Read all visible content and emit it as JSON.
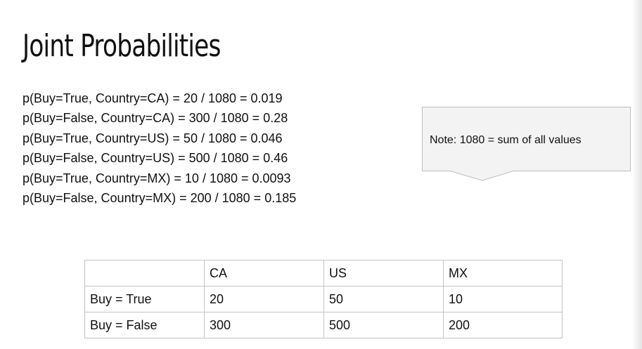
{
  "title": "Joint Probabilities",
  "probabilities": [
    "p(Buy=True, Country=CA) = 20 / 1080 = 0.019",
    "p(Buy=False, Country=CA) = 300 / 1080 = 0.28",
    "p(Buy=True, Country=US) = 50 / 1080 = 0.046",
    "p(Buy=False, Country=US) = 500 / 1080 = 0.46",
    "p(Buy=True, Country=MX) = 10 / 1080 = 0.0093",
    "p(Buy=False, Country=MX) = 200 / 1080 = 0.185"
  ],
  "note": "Note: 1080 = sum of all values",
  "table": {
    "headers": [
      "",
      "CA",
      "US",
      "MX"
    ],
    "rows": [
      [
        "Buy = True",
        "20",
        "50",
        "10"
      ],
      [
        "Buy = False",
        "300",
        "500",
        "200"
      ]
    ]
  },
  "colors": {
    "note_background": "#f3f3f3",
    "note_border": "#bdbdbd",
    "table_border": "#c4c4c4"
  }
}
